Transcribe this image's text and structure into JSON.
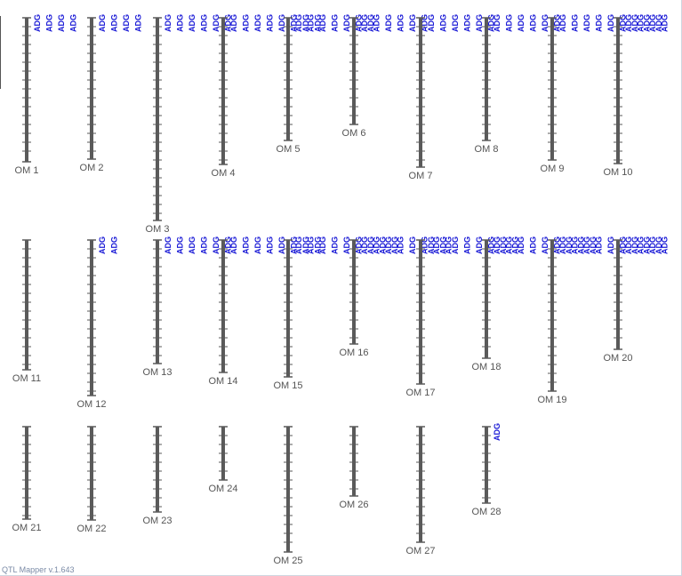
{
  "app": {
    "version_text": "QTL Mapper v.1.643"
  },
  "qtl_marker": "ADG",
  "colors": {
    "chromosome": "#5a5a5a",
    "qtl_label": "#1a1ad6",
    "label": "#555555"
  },
  "chromosomes": [
    {
      "label": "OM 1",
      "relative_length": 1.0,
      "qtl_count": 4
    },
    {
      "label": "OM 2",
      "relative_length": 0.98,
      "qtl_count": 4
    },
    {
      "label": "OM 3",
      "relative_length": 1.41,
      "qtl_count": 6
    },
    {
      "label": "OM 4",
      "relative_length": 1.02,
      "qtl_count": 8
    },
    {
      "label": "OM 5",
      "relative_length": 0.85,
      "qtl_count": 7
    },
    {
      "label": "OM 6",
      "relative_length": 0.74,
      "qtl_count": 6
    },
    {
      "label": "OM 7",
      "relative_length": 1.04,
      "qtl_count": 6
    },
    {
      "label": "OM 8",
      "relative_length": 0.85,
      "qtl_count": 6
    },
    {
      "label": "OM 9",
      "relative_length": 0.99,
      "qtl_count": 9
    },
    {
      "label": "OM 10",
      "relative_length": 1.01,
      "qtl_count": 9
    },
    {
      "label": "OM 11",
      "relative_length": 0.9,
      "qtl_count": 0
    },
    {
      "label": "OM 12",
      "relative_length": 1.08,
      "qtl_count": 2
    },
    {
      "label": "OM 13",
      "relative_length": 0.86,
      "qtl_count": 6
    },
    {
      "label": "OM 14",
      "relative_length": 0.92,
      "qtl_count": 8
    },
    {
      "label": "OM 15",
      "relative_length": 0.95,
      "qtl_count": 9
    },
    {
      "label": "OM 16",
      "relative_length": 0.72,
      "qtl_count": 8
    },
    {
      "label": "OM 17",
      "relative_length": 1.0,
      "qtl_count": 8
    },
    {
      "label": "OM 18",
      "relative_length": 0.82,
      "qtl_count": 9
    },
    {
      "label": "OM 19",
      "relative_length": 1.05,
      "qtl_count": 9
    },
    {
      "label": "OM 20",
      "relative_length": 0.76,
      "qtl_count": 9
    },
    {
      "label": "OM 21",
      "relative_length": 0.64,
      "qtl_count": 0
    },
    {
      "label": "OM 22",
      "relative_length": 0.65,
      "qtl_count": 0
    },
    {
      "label": "OM 23",
      "relative_length": 0.59,
      "qtl_count": 0
    },
    {
      "label": "OM 24",
      "relative_length": 0.37,
      "qtl_count": 0
    },
    {
      "label": "OM 25",
      "relative_length": 0.87,
      "qtl_count": 0
    },
    {
      "label": "OM 26",
      "relative_length": 0.48,
      "qtl_count": 0
    },
    {
      "label": "OM 27",
      "relative_length": 0.8,
      "qtl_count": 0
    },
    {
      "label": "OM 28",
      "relative_length": 0.53,
      "qtl_count": 1
    }
  ]
}
